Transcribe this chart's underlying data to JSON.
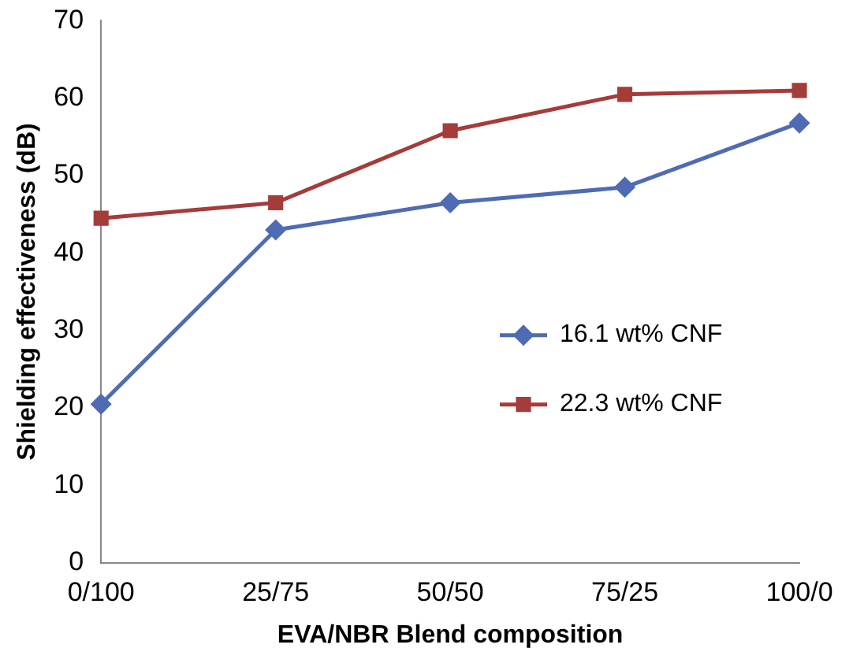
{
  "chart_data": {
    "type": "line",
    "xlabel": "EVA/NBR Blend composition",
    "ylabel": "Shielding effectiveness (dB)",
    "categories": [
      "0/100",
      "25/75",
      "50/50",
      "75/25",
      "100/0"
    ],
    "series": [
      {
        "name": "16.1 wt% CNF",
        "color": "#4f6bb3",
        "marker": "diamond",
        "values": [
          20.5,
          43,
          46.5,
          48.5,
          56.8
        ]
      },
      {
        "name": "22.3 wt% CNF",
        "color": "#a53c3a",
        "marker": "square",
        "values": [
          44.5,
          46.5,
          55.8,
          60.5,
          61
        ]
      }
    ],
    "ylim": [
      0,
      70
    ],
    "yticks": [
      0,
      10,
      20,
      30,
      40,
      50,
      60,
      70
    ],
    "grid": false,
    "legend": "right"
  }
}
